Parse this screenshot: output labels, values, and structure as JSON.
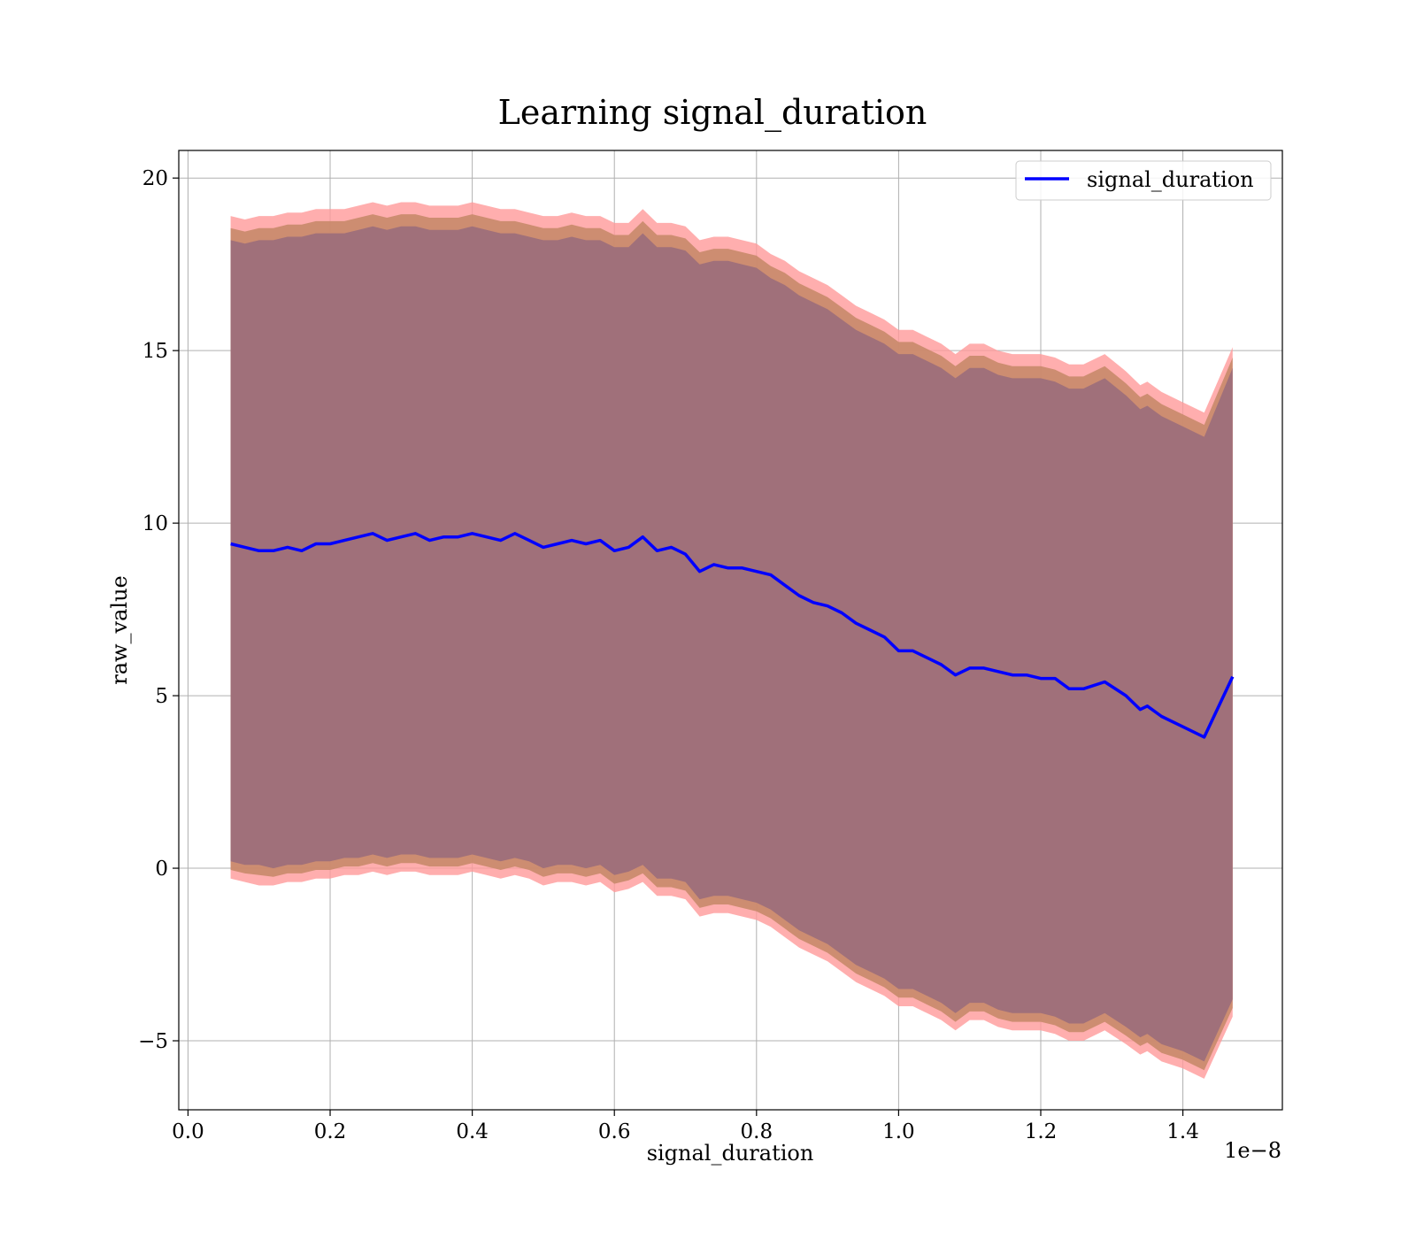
{
  "chart_data": {
    "type": "line",
    "title": "Learning signal_duration",
    "xlabel": "signal_duration",
    "ylabel": "raw_value",
    "x_offset_label": "1e−8",
    "xlim": [
      -0.013,
      1.54
    ],
    "ylim": [
      -7,
      20.8
    ],
    "x_ticks": [
      0.0,
      0.2,
      0.4,
      0.6,
      0.8,
      1.0,
      1.2,
      1.4
    ],
    "x_tick_labels": [
      "0.0",
      "0.2",
      "0.4",
      "0.6",
      "0.8",
      "1.0",
      "1.2",
      "1.4"
    ],
    "y_ticks": [
      -5,
      0,
      5,
      10,
      15,
      20
    ],
    "y_tick_labels": [
      "−5",
      "0",
      "5",
      "10",
      "15",
      "20"
    ],
    "grid": true,
    "legend": {
      "position": "top-right",
      "entries": [
        "signal_duration"
      ]
    },
    "colors": {
      "line": "#0000ff",
      "outer_band": "#ff9a9a",
      "mid_band": "#c88a6a",
      "inner_band": "#a0707a",
      "grid": "#b0b0b0"
    },
    "series": [
      {
        "name": "signal_duration",
        "x": [
          0.06,
          0.08,
          0.1,
          0.12,
          0.14,
          0.16,
          0.18,
          0.2,
          0.22,
          0.24,
          0.26,
          0.28,
          0.3,
          0.32,
          0.34,
          0.36,
          0.38,
          0.4,
          0.42,
          0.44,
          0.46,
          0.48,
          0.5,
          0.52,
          0.54,
          0.56,
          0.58,
          0.6,
          0.62,
          0.64,
          0.66,
          0.68,
          0.7,
          0.72,
          0.74,
          0.76,
          0.78,
          0.8,
          0.82,
          0.84,
          0.86,
          0.88,
          0.9,
          0.92,
          0.94,
          0.96,
          0.98,
          1.0,
          1.02,
          1.04,
          1.06,
          1.08,
          1.1,
          1.12,
          1.14,
          1.16,
          1.18,
          1.2,
          1.22,
          1.24,
          1.26,
          1.29,
          1.32,
          1.34,
          1.35,
          1.37,
          1.4,
          1.43,
          1.47
        ],
        "y": [
          9.4,
          9.3,
          9.2,
          9.2,
          9.3,
          9.2,
          9.4,
          9.4,
          9.5,
          9.6,
          9.7,
          9.5,
          9.6,
          9.7,
          9.5,
          9.6,
          9.6,
          9.7,
          9.6,
          9.5,
          9.7,
          9.5,
          9.3,
          9.4,
          9.5,
          9.4,
          9.5,
          9.2,
          9.3,
          9.6,
          9.2,
          9.3,
          9.1,
          8.6,
          8.8,
          8.7,
          8.7,
          8.6,
          8.5,
          8.2,
          7.9,
          7.7,
          7.6,
          7.4,
          7.1,
          6.9,
          6.7,
          6.3,
          6.3,
          6.1,
          5.9,
          5.6,
          5.8,
          5.8,
          5.7,
          5.6,
          5.6,
          5.5,
          5.5,
          5.2,
          5.2,
          5.4,
          5.0,
          4.6,
          4.7,
          4.4,
          4.1,
          3.8,
          5.55
        ],
        "upper_outer": [
          18.9,
          18.8,
          18.9,
          18.9,
          19.0,
          19.0,
          19.1,
          19.1,
          19.1,
          19.2,
          19.3,
          19.2,
          19.3,
          19.3,
          19.2,
          19.2,
          19.2,
          19.3,
          19.2,
          19.1,
          19.1,
          19.0,
          18.9,
          18.9,
          19.0,
          18.9,
          18.9,
          18.7,
          18.7,
          19.1,
          18.7,
          18.7,
          18.6,
          18.2,
          18.3,
          18.3,
          18.2,
          18.1,
          17.8,
          17.6,
          17.3,
          17.1,
          16.9,
          16.6,
          16.3,
          16.1,
          15.9,
          15.6,
          15.6,
          15.4,
          15.2,
          14.9,
          15.2,
          15.2,
          15.0,
          14.9,
          14.9,
          14.9,
          14.8,
          14.6,
          14.6,
          14.9,
          14.4,
          14.0,
          14.1,
          13.8,
          13.5,
          13.2,
          15.1
        ],
        "upper_inner": [
          18.2,
          18.1,
          18.2,
          18.2,
          18.3,
          18.3,
          18.4,
          18.4,
          18.4,
          18.5,
          18.6,
          18.5,
          18.6,
          18.6,
          18.5,
          18.5,
          18.5,
          18.6,
          18.5,
          18.4,
          18.4,
          18.3,
          18.2,
          18.2,
          18.3,
          18.2,
          18.2,
          18.0,
          18.0,
          18.4,
          18.0,
          18.0,
          17.9,
          17.5,
          17.6,
          17.6,
          17.5,
          17.4,
          17.1,
          16.9,
          16.6,
          16.4,
          16.2,
          15.9,
          15.6,
          15.4,
          15.2,
          14.9,
          14.9,
          14.7,
          14.5,
          14.2,
          14.5,
          14.5,
          14.3,
          14.2,
          14.2,
          14.2,
          14.1,
          13.9,
          13.9,
          14.2,
          13.7,
          13.3,
          13.4,
          13.1,
          12.8,
          12.5,
          14.5
        ],
        "lower_inner": [
          0.2,
          0.1,
          0.1,
          0.0,
          0.1,
          0.1,
          0.2,
          0.2,
          0.3,
          0.3,
          0.4,
          0.3,
          0.4,
          0.4,
          0.3,
          0.3,
          0.3,
          0.4,
          0.3,
          0.2,
          0.3,
          0.2,
          0.0,
          0.1,
          0.1,
          0.0,
          0.1,
          -0.2,
          -0.1,
          0.1,
          -0.3,
          -0.3,
          -0.4,
          -0.9,
          -0.8,
          -0.8,
          -0.9,
          -1.0,
          -1.2,
          -1.5,
          -1.8,
          -2.0,
          -2.2,
          -2.5,
          -2.8,
          -3.0,
          -3.2,
          -3.5,
          -3.5,
          -3.7,
          -3.9,
          -4.2,
          -3.9,
          -3.9,
          -4.1,
          -4.2,
          -4.2,
          -4.2,
          -4.3,
          -4.5,
          -4.5,
          -4.2,
          -4.6,
          -4.9,
          -4.8,
          -5.1,
          -5.3,
          -5.6,
          -3.8
        ],
        "lower_outer": [
          -0.3,
          -0.4,
          -0.5,
          -0.5,
          -0.4,
          -0.4,
          -0.3,
          -0.3,
          -0.2,
          -0.2,
          -0.1,
          -0.2,
          -0.1,
          -0.1,
          -0.2,
          -0.2,
          -0.2,
          -0.1,
          -0.2,
          -0.3,
          -0.2,
          -0.3,
          -0.5,
          -0.4,
          -0.4,
          -0.5,
          -0.4,
          -0.7,
          -0.6,
          -0.4,
          -0.8,
          -0.8,
          -0.9,
          -1.4,
          -1.3,
          -1.3,
          -1.4,
          -1.5,
          -1.7,
          -2.0,
          -2.3,
          -2.5,
          -2.7,
          -3.0,
          -3.3,
          -3.5,
          -3.7,
          -4.0,
          -4.0,
          -4.2,
          -4.4,
          -4.7,
          -4.4,
          -4.4,
          -4.6,
          -4.7,
          -4.7,
          -4.7,
          -4.8,
          -5.0,
          -5.0,
          -4.7,
          -5.1,
          -5.4,
          -5.3,
          -5.6,
          -5.8,
          -6.1,
          -4.3
        ]
      }
    ]
  }
}
